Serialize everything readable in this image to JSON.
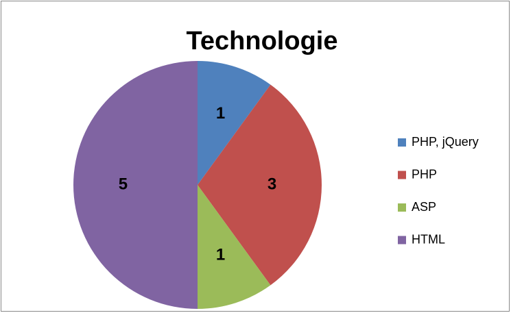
{
  "chart_data": {
    "type": "pie",
    "title": "Technologie",
    "categories": [
      "PHP, jQuery",
      "PHP",
      "ASP",
      "HTML"
    ],
    "values": [
      1,
      3,
      1,
      5
    ],
    "colors": [
      "#4f81bd",
      "#c0504d",
      "#9bbb59",
      "#8064a2"
    ],
    "legend": "right"
  }
}
